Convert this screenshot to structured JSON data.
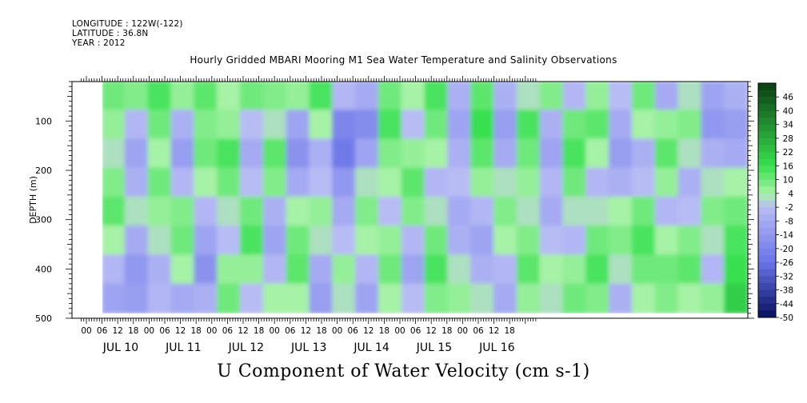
{
  "header": {
    "longitude": "LONGITUDE : 122W(-122)",
    "latitude": "LATITUDE : 36.8N",
    "year": "YEAR : 2012"
  },
  "chart_data": {
    "type": "heatmap",
    "title": "Hourly Gridded MBARI Mooring M1 Sea Water Temperature and Salinity Observations",
    "xlabel": "U Component of Water Velocity (cm s-1)",
    "ylabel": "DEPTH (m)",
    "ylim": [
      500,
      20
    ],
    "y_ticks": [
      100,
      200,
      300,
      400,
      500
    ],
    "x_hour_labels": [
      "00",
      "06",
      "12",
      "18",
      "00",
      "06",
      "12",
      "18",
      "00",
      "06",
      "12",
      "18",
      "00",
      "06",
      "12",
      "18",
      "00",
      "06",
      "12",
      "18",
      "00",
      "06",
      "12",
      "18",
      "00",
      "06",
      "12",
      "18"
    ],
    "x_day_labels": [
      "JUL 10",
      "JUL 11",
      "JUL 12",
      "JUL 13",
      "JUL 14",
      "JUL 15",
      "JUL 16"
    ],
    "data_start": "JUL 10 03:00",
    "colorbar": {
      "labels": [
        "46",
        "40",
        "34",
        "28",
        "22",
        "16",
        "10",
        "4",
        "-2",
        "-8",
        "-14",
        "-20",
        "-26",
        "-32",
        "-38",
        "-44",
        "-50"
      ],
      "min": -50,
      "max": 52,
      "step": 3,
      "colors": {
        "high": "#0b3d12",
        "pos_mid": "#38e04f",
        "pos_low": "#a6f2a6",
        "neg_low": "#b8bcf5",
        "neg_mid": "#6a74e8",
        "low": "#061060"
      }
    },
    "columns": [
      {
        "day": "JUL 10",
        "profile": [
          10,
          6,
          2,
          8,
          12,
          4,
          -4,
          -10
        ]
      },
      {
        "day": "JUL 10",
        "profile": [
          8,
          -4,
          -10,
          -6,
          2,
          -8,
          -14,
          -12
        ]
      },
      {
        "day": "JUL 10",
        "profile": [
          14,
          10,
          4,
          10,
          6,
          2,
          -6,
          -4
        ]
      },
      {
        "day": "JUL 10",
        "profile": [
          6,
          -6,
          -12,
          -4,
          8,
          10,
          4,
          -8
        ]
      },
      {
        "day": "JUL 11",
        "profile": [
          12,
          8,
          10,
          4,
          -4,
          -10,
          -16,
          -6
        ]
      },
      {
        "day": "JUL 11",
        "profile": [
          4,
          6,
          14,
          10,
          2,
          -2,
          6,
          10
        ]
      },
      {
        "day": "JUL 11",
        "profile": [
          10,
          -2,
          -8,
          -2,
          10,
          14,
          6,
          -2
        ]
      },
      {
        "day": "JUL 11",
        "profile": [
          8,
          2,
          12,
          8,
          -6,
          -10,
          -4,
          4
        ]
      },
      {
        "day": "JUL 12",
        "profile": [
          6,
          -10,
          -16,
          -8,
          4,
          10,
          12,
          4
        ]
      },
      {
        "day": "JUL 12",
        "profile": [
          14,
          4,
          -6,
          -2,
          6,
          2,
          -8,
          -12
        ]
      },
      {
        "day": "JUL 12",
        "profile": [
          -4,
          -20,
          -24,
          -14,
          -8,
          -2,
          6,
          2
        ]
      },
      {
        "day": "JUL 12",
        "profile": [
          -8,
          -18,
          -10,
          2,
          8,
          4,
          -4,
          -10
        ]
      },
      {
        "day": "JUL 13",
        "profile": [
          10,
          14,
          8,
          4,
          -2,
          6,
          10,
          4
        ]
      },
      {
        "day": "JUL 13",
        "profile": [
          4,
          -2,
          6,
          12,
          8,
          -4,
          -10,
          -2
        ]
      },
      {
        "day": "JUL 13",
        "profile": [
          14,
          10,
          4,
          -4,
          2,
          10,
          14,
          8
        ]
      },
      {
        "day": "JUL 13",
        "profile": [
          -6,
          -10,
          -6,
          -2,
          -8,
          -6,
          2,
          6
        ]
      },
      {
        "day": "JUL 14",
        "profile": [
          12,
          16,
          12,
          6,
          -4,
          -10,
          -6,
          2
        ]
      },
      {
        "day": "JUL 14",
        "profile": [
          -6,
          -12,
          -8,
          2,
          8,
          4,
          -4,
          -8
        ]
      },
      {
        "day": "JUL 14",
        "profile": [
          2,
          14,
          10,
          6,
          2,
          8,
          12,
          6
        ]
      },
      {
        "day": "JUL 14",
        "profile": [
          8,
          -6,
          -10,
          -4,
          -8,
          -2,
          4,
          2
        ]
      },
      {
        "day": "JUL 15",
        "profile": [
          -4,
          10,
          14,
          10,
          2,
          -4,
          6,
          10
        ]
      },
      {
        "day": "JUL 15",
        "profile": [
          6,
          12,
          4,
          -4,
          2,
          10,
          14,
          8
        ]
      },
      {
        "day": "JUL 15",
        "profile": [
          -2,
          -8,
          -12,
          -6,
          4,
          8,
          2,
          -6
        ]
      },
      {
        "day": "JUL 15",
        "profile": [
          10,
          4,
          -6,
          -2,
          10,
          14,
          10,
          4
        ]
      },
      {
        "day": "JUL 16",
        "profile": [
          -8,
          6,
          12,
          6,
          -4,
          4,
          10,
          8
        ]
      },
      {
        "day": "JUL 16",
        "profile": [
          2,
          8,
          2,
          -6,
          -2,
          8,
          12,
          4
        ]
      },
      {
        "day": "JUL 16",
        "profile": [
          -10,
          -14,
          -6,
          2,
          8,
          2,
          -4,
          6
        ]
      },
      {
        "day": "JUL 16",
        "profile": [
          -6,
          -12,
          -8,
          4,
          10,
          14,
          16,
          20
        ]
      }
    ]
  }
}
